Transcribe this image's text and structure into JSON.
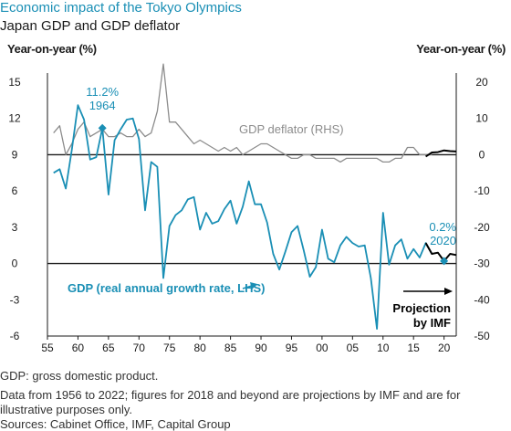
{
  "header": {
    "title": "Economic impact of the Tokyo Olympics",
    "subtitle": "Japan GDP and GDP deflator",
    "left_axis_label": "Year-on-year (%)",
    "right_axis_label": "Year-on-year (%)"
  },
  "colors": {
    "gdp": "#1a8fb5",
    "deflator": "#8c8c8c",
    "projection": "#000000",
    "title": "#1a8fb5"
  },
  "chart_data": {
    "type": "line",
    "x_tick_labels": [
      "55",
      "60",
      "65",
      "70",
      "75",
      "80",
      "85",
      "90",
      "95",
      "00",
      "05",
      "10",
      "15",
      "20"
    ],
    "x_tick_years": [
      1955,
      1960,
      1965,
      1970,
      1975,
      1980,
      1985,
      1990,
      1995,
      2000,
      2005,
      2010,
      2015,
      2020
    ],
    "xlim": [
      1955,
      2022
    ],
    "y_left": {
      "ticks": [
        "15",
        "12",
        "9",
        "6",
        "3",
        "0",
        "-3",
        "-6"
      ],
      "lim": [
        -6,
        15
      ]
    },
    "y_right": {
      "ticks": [
        "20",
        "10",
        "0",
        "-10",
        "-20",
        "-30",
        "-40",
        "-50"
      ],
      "lim": [
        -50,
        20
      ]
    },
    "series": [
      {
        "name": "GDP (real annual growth rate, LHS)",
        "axis": "left",
        "x": [
          1956,
          1957,
          1958,
          1959,
          1960,
          1961,
          1962,
          1963,
          1964,
          1965,
          1966,
          1967,
          1968,
          1969,
          1970,
          1971,
          1972,
          1973,
          1974,
          1975,
          1976,
          1977,
          1978,
          1979,
          1980,
          1981,
          1982,
          1983,
          1984,
          1985,
          1986,
          1987,
          1988,
          1989,
          1990,
          1991,
          1992,
          1993,
          1994,
          1995,
          1996,
          1997,
          1998,
          1999,
          2000,
          2001,
          2002,
          2003,
          2004,
          2005,
          2006,
          2007,
          2008,
          2009,
          2010,
          2011,
          2012,
          2013,
          2014,
          2015,
          2016,
          2017,
          2018
        ],
        "values": [
          7.5,
          7.8,
          6.2,
          9.4,
          13.1,
          11.9,
          8.6,
          8.8,
          11.2,
          5.7,
          10.2,
          11.1,
          11.9,
          12.0,
          10.3,
          4.4,
          8.4,
          8.0,
          -1.2,
          3.1,
          4.0,
          4.4,
          5.3,
          5.5,
          2.8,
          4.2,
          3.3,
          3.5,
          4.5,
          5.2,
          3.3,
          4.7,
          6.8,
          4.9,
          4.9,
          3.4,
          0.8,
          -0.5,
          1.0,
          2.6,
          3.1,
          1.1,
          -1.1,
          -0.3,
          2.8,
          0.4,
          0.1,
          1.5,
          2.2,
          1.7,
          1.4,
          1.5,
          -1.2,
          -5.4,
          4.2,
          -0.1,
          1.5,
          2.0,
          0.4,
          1.2,
          0.5,
          1.7,
          0.8
        ]
      },
      {
        "name": "GDP projection",
        "axis": "left",
        "x": [
          2017,
          2018,
          2019,
          2020,
          2021,
          2022
        ],
        "values": [
          1.7,
          0.8,
          0.9,
          0.2,
          0.8,
          0.7
        ]
      },
      {
        "name": "GDP deflator (RHS)",
        "axis": "right",
        "x": [
          1956,
          1957,
          1958,
          1959,
          1960,
          1961,
          1962,
          1963,
          1964,
          1965,
          1966,
          1967,
          1968,
          1969,
          1970,
          1971,
          1972,
          1973,
          1974,
          1975,
          1976,
          1977,
          1978,
          1979,
          1980,
          1981,
          1982,
          1983,
          1984,
          1985,
          1986,
          1987,
          1988,
          1989,
          1990,
          1991,
          1992,
          1993,
          1994,
          1995,
          1996,
          1997,
          1998,
          1999,
          2000,
          2001,
          2002,
          2003,
          2004,
          2005,
          2006,
          2007,
          2008,
          2009,
          2010,
          2011,
          2012,
          2013,
          2014,
          2015,
          2016,
          2017,
          2018
        ],
        "values": [
          6,
          8,
          0,
          3,
          7,
          9,
          5,
          6,
          7,
          5,
          5,
          6,
          5,
          5,
          7,
          5,
          6,
          12,
          25,
          9,
          9,
          7,
          5,
          3,
          4,
          3,
          2,
          1,
          2,
          1,
          2,
          0,
          1,
          2,
          3,
          3,
          2,
          1,
          0,
          -1,
          -1,
          0,
          0,
          -1,
          -1,
          -1,
          -1,
          -2,
          -1,
          -1,
          -1,
          -1,
          -1,
          -1,
          -2,
          -2,
          -1,
          -1,
          2,
          2,
          0,
          0,
          0
        ]
      },
      {
        "name": "GDP deflator projection",
        "axis": "right",
        "x": [
          2017,
          2018,
          2019,
          2020,
          2021,
          2022
        ],
        "values": [
          -0.5,
          0.6,
          0.7,
          1.2,
          1.0,
          0.9
        ]
      }
    ],
    "annotations": [
      {
        "label": "11.2%",
        "year_label": "1964",
        "x": 1964,
        "y": 11.2
      },
      {
        "label": "0.2%",
        "year_label": "2020",
        "x": 2020,
        "y": 0.2
      }
    ],
    "series_labels": {
      "deflator": "GDP deflator (RHS)",
      "gdp": "GDP (real annual growth rate, LHS)",
      "projection_line1": "Projection",
      "projection_line2": "by IMF"
    }
  },
  "footer": {
    "note1": "GDP: gross domestic product.",
    "note2": "Data from 1956 to 2022; figures for 2018 and beyond are projections by IMF and are for illustrative purposes only.",
    "sources": "Sources: Cabinet Office, IMF, Capital Group"
  }
}
